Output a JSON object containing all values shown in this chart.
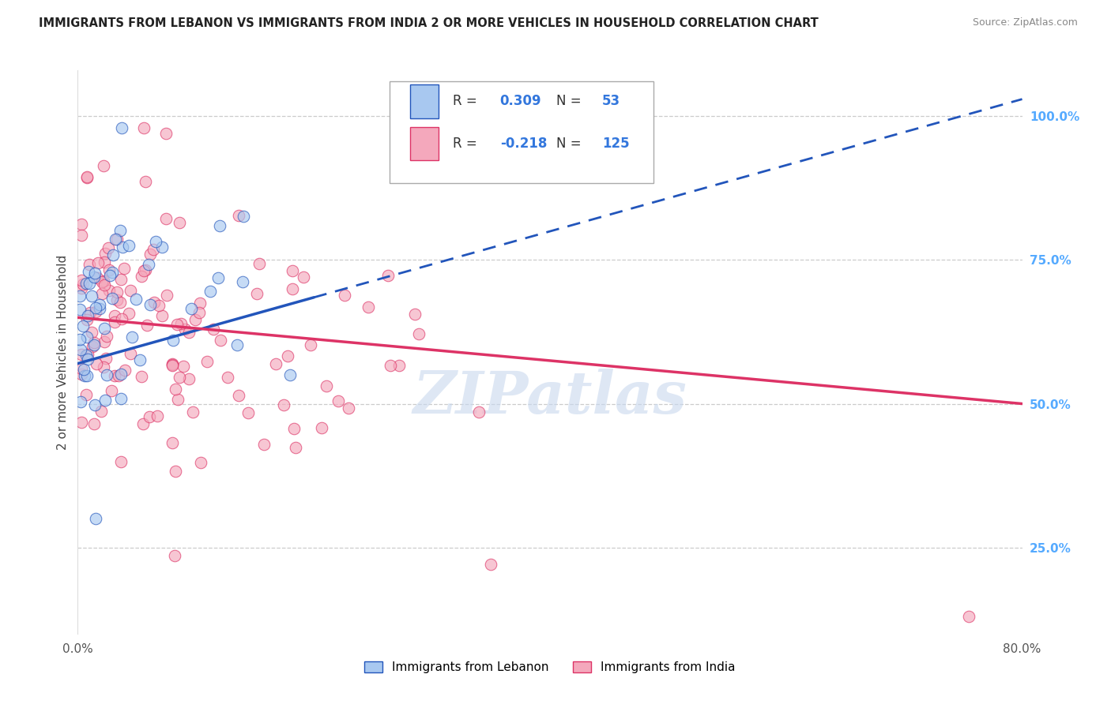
{
  "title": "IMMIGRANTS FROM LEBANON VS IMMIGRANTS FROM INDIA 2 OR MORE VEHICLES IN HOUSEHOLD CORRELATION CHART",
  "source": "Source: ZipAtlas.com",
  "ylabel": "2 or more Vehicles in Household",
  "legend_label1": "Immigrants from Lebanon",
  "legend_label2": "Immigrants from India",
  "R_lebanon": 0.309,
  "N_lebanon": 53,
  "R_india": -0.218,
  "N_india": 125,
  "xmin": 0.0,
  "xmax": 80.0,
  "ymin": 10.0,
  "ymax": 108.0,
  "yticks": [
    25.0,
    50.0,
    75.0,
    100.0
  ],
  "ytick_labels": [
    "25.0%",
    "50.0%",
    "75.0%",
    "100.0%"
  ],
  "color_lebanon": "#a8c8f0",
  "color_india": "#f4a8bc",
  "line_color_lebanon": "#2255bb",
  "line_color_india": "#dd3366",
  "background_color": "#ffffff",
  "watermark_text": "ZIPatlas",
  "watermark_color": "#c8d8ee",
  "leb_line_x0": 0.0,
  "leb_line_y0": 57.0,
  "leb_line_x1": 80.0,
  "leb_line_y1": 103.0,
  "ind_line_x0": 0.0,
  "ind_line_y0": 65.0,
  "ind_line_x1": 80.0,
  "ind_line_y1": 50.0
}
